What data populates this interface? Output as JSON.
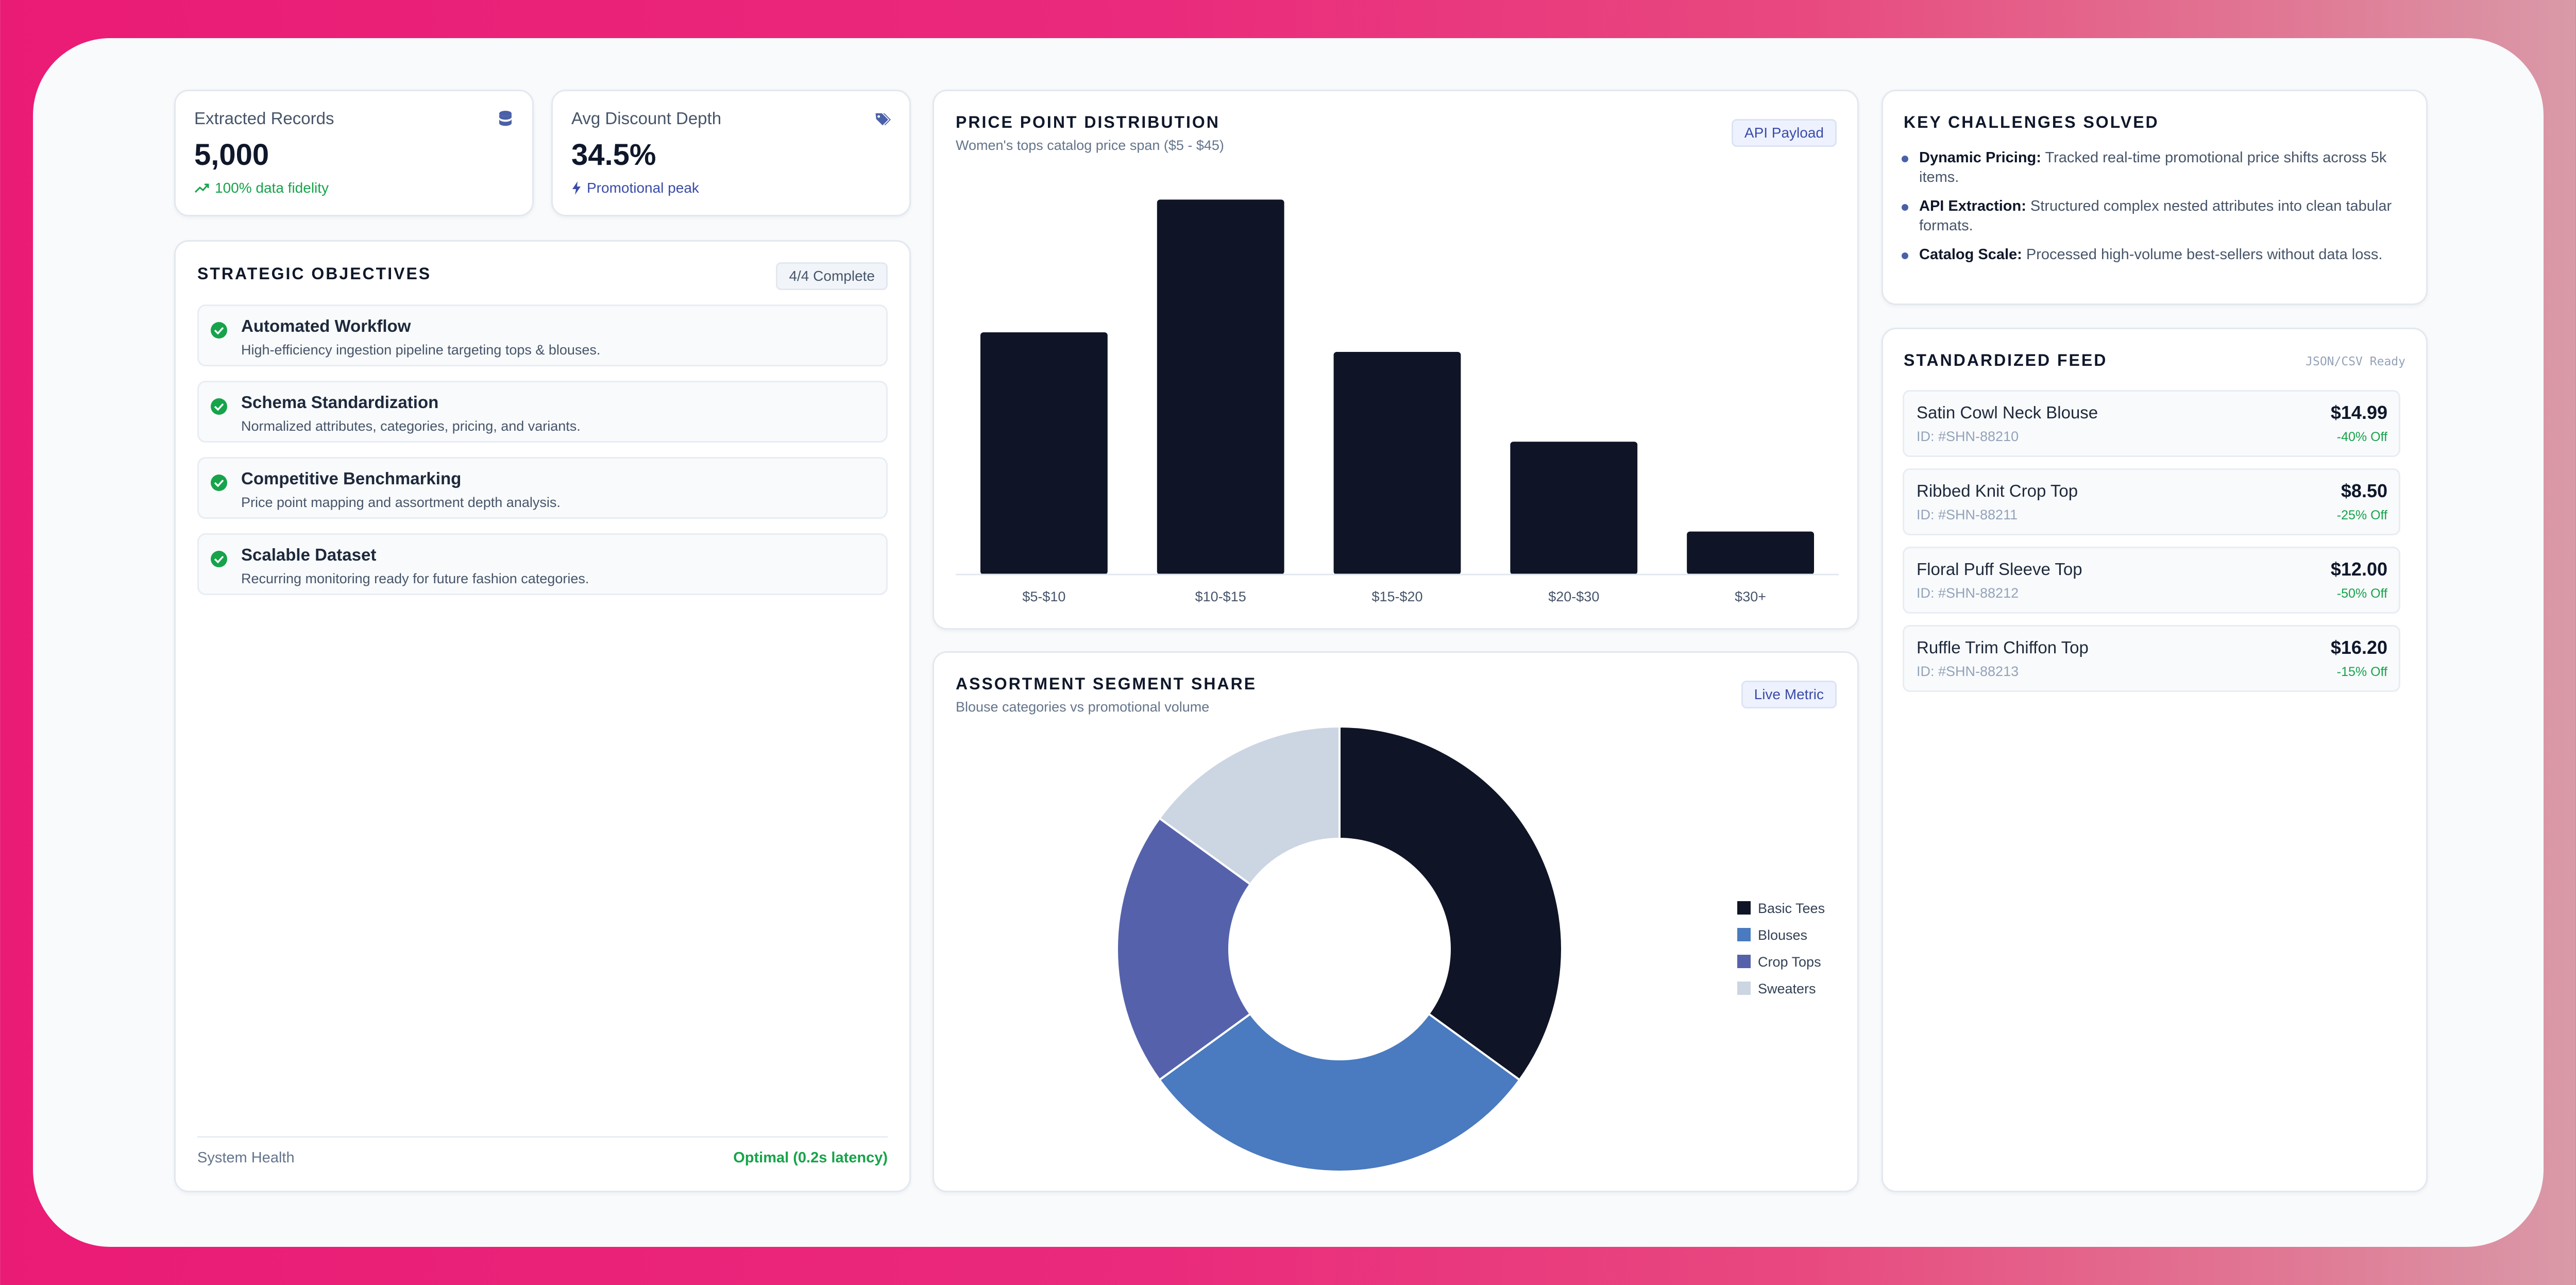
{
  "stats": [
    {
      "label": "Extracted Records",
      "value": "5,000",
      "sub": "100% data fidelity",
      "icon": "database-icon",
      "sub_icon": "trending-up-icon",
      "sub_color": "#16a34a"
    },
    {
      "label": "Avg Discount Depth",
      "value": "34.5%",
      "sub": "Promotional peak",
      "icon": "tag-icon",
      "sub_icon": "lightning-icon",
      "sub_color": "#3a4ba8"
    }
  ],
  "objectives": {
    "title": "STRATEGIC OBJECTIVES",
    "badge": "4/4 Complete",
    "items": [
      {
        "title": "Automated Workflow",
        "desc": "High-efficiency ingestion pipeline targeting tops & blouses."
      },
      {
        "title": "Schema Standardization",
        "desc": "Normalized attributes, categories, pricing, and variants."
      },
      {
        "title": "Competitive Benchmarking",
        "desc": "Price point mapping and assortment depth analysis."
      },
      {
        "title": "Scalable Dataset",
        "desc": "Recurring monitoring ready for future fashion categories."
      }
    ],
    "footer_label": "System Health",
    "footer_value": "Optimal (0.2s latency)"
  },
  "price_chart": {
    "title": "PRICE POINT DISTRIBUTION",
    "subtitle": "Women's tops catalog price span ($5 - $45)",
    "badge": "API Payload"
  },
  "segment_chart": {
    "title": "ASSORTMENT SEGMENT SHARE",
    "subtitle": "Blouse categories vs promotional volume",
    "badge": "Live Metric"
  },
  "challenges": {
    "title": "KEY CHALLENGES SOLVED",
    "items": [
      {
        "lead": "Dynamic Pricing:",
        "text": " Tracked real-time promotional price shifts across 5k items."
      },
      {
        "lead": "API Extraction:",
        "text": " Structured complex nested attributes into clean tabular formats."
      },
      {
        "lead": "Catalog Scale:",
        "text": " Processed high-volume best-sellers without data loss."
      }
    ]
  },
  "feed": {
    "title": "STANDARDIZED FEED",
    "status": "JSON/CSV Ready",
    "items": [
      {
        "name": "Satin Cowl Neck Blouse",
        "id": "ID: #SHN-88210",
        "price": "$14.99",
        "off": "-40% Off"
      },
      {
        "name": "Ribbed Knit Crop Top",
        "id": "ID: #SHN-88211",
        "price": "$8.50",
        "off": "-25% Off"
      },
      {
        "name": "Floral Puff Sleeve Top",
        "id": "ID: #SHN-88212",
        "price": "$12.00",
        "off": "-50% Off"
      },
      {
        "name": "Ruffle Trim Chiffon Top",
        "id": "ID: #SHN-88213",
        "price": "$16.20",
        "off": "-15% Off"
      }
    ]
  },
  "colors": {
    "navy": "#0f1426",
    "blue": "#4a7abf",
    "indigo": "#5562ab",
    "slate": "#ccd5e2",
    "green": "#16a34a",
    "accent": "#3a4ba8"
  },
  "chart_data": [
    {
      "type": "bar",
      "categories": [
        "$5-$10",
        "$10-$15",
        "$15-$20",
        "$20-$30",
        "$30+"
      ],
      "values": [
        62,
        96,
        57,
        34,
        11
      ],
      "ylim": [
        0,
        100
      ]
    },
    {
      "type": "pie",
      "labels": [
        "Basic Tees",
        "Blouses",
        "Crop Tops",
        "Sweaters"
      ],
      "values": [
        35,
        30,
        20,
        15
      ],
      "colors": [
        "#0f1426",
        "#4a7abf",
        "#5562ab",
        "#ccd5e2"
      ],
      "legend": "right"
    }
  ]
}
